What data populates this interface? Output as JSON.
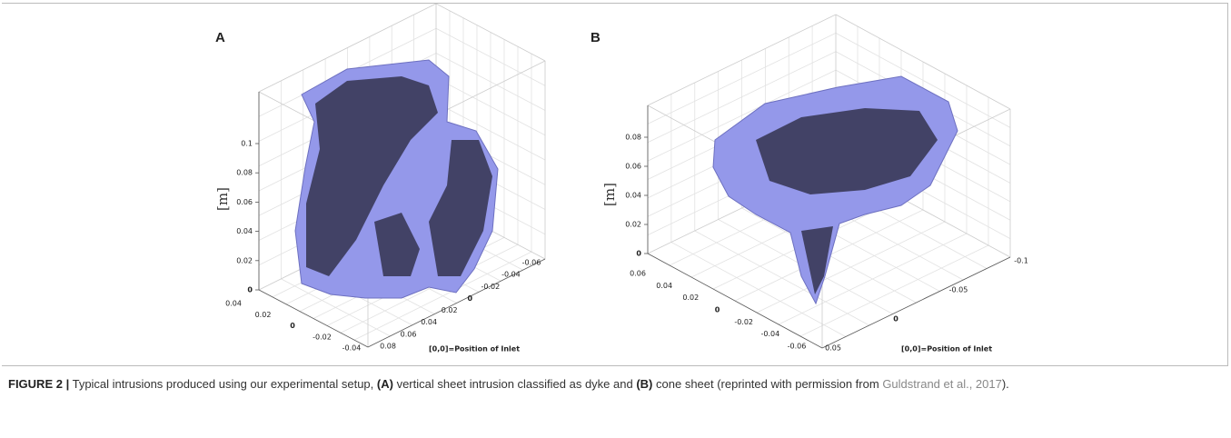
{
  "panels": [
    {
      "label": "A",
      "z_label": "[m]",
      "z_ticks": [
        "0",
        "0.02",
        "0.04",
        "0.06",
        "0.08",
        "0.1"
      ],
      "x_ticks": [
        "0.04",
        "0.02",
        "0",
        "-0.02",
        "-0.04"
      ],
      "y_ticks": [
        "0.08",
        "0.06",
        "0.04",
        "0.02",
        "0",
        "-0.02",
        "-0.04",
        "-0.06"
      ],
      "note": "[0,0]=Position of Inlet"
    },
    {
      "label": "B",
      "z_label": "[m]",
      "z_ticks": [
        "0",
        "0.02",
        "0.04",
        "0.06",
        "0.08"
      ],
      "x_ticks": [
        "0.06",
        "0.04",
        "0.02",
        "0",
        "-0.02",
        "-0.04",
        "-0.06"
      ],
      "y_ticks": [
        "0.05",
        "0",
        "-0.05",
        "-0.1"
      ],
      "note": "[0,0]=Position of Inlet"
    }
  ],
  "caption": {
    "label": "FIGURE 2 |",
    "text_1": "Typical intrusions produced using our experimental setup,",
    "bold_a": "(A)",
    "text_2": "vertical sheet intrusion classified as dyke and",
    "bold_b": "(B)",
    "text_3": "cone sheet (reprinted with permission from",
    "link": "Guldstrand et al., 2017",
    "text_4": ")."
  }
}
